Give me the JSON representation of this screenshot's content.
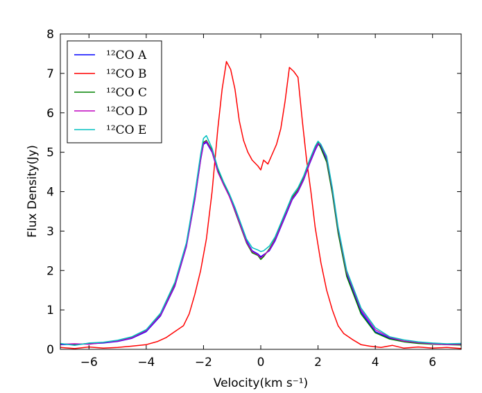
{
  "chart_data": {
    "type": "line",
    "title": "",
    "xlabel": "Velocity(km s⁻¹)",
    "ylabel": "Flux Density(Jy)",
    "xlim": [
      -7,
      7
    ],
    "ylim": [
      0,
      8
    ],
    "xticks": [
      -6,
      -4,
      -2,
      0,
      2,
      4,
      6
    ],
    "xtick_labels": [
      "−6",
      "−4",
      "−2",
      "0",
      "2",
      "4",
      "6"
    ],
    "yticks": [
      0,
      1,
      2,
      3,
      4,
      5,
      6,
      7,
      8
    ],
    "ytick_labels": [
      "0",
      "1",
      "2",
      "3",
      "4",
      "5",
      "6",
      "7",
      "8"
    ],
    "grid": false,
    "legend_position": "top-left",
    "series": [
      {
        "name": "¹²CO A",
        "color": "#0000ff",
        "points": [
          [
            -7,
            0.12
          ],
          [
            -6.5,
            0.13
          ],
          [
            -6,
            0.14
          ],
          [
            -5.5,
            0.16
          ],
          [
            -5,
            0.2
          ],
          [
            -4.5,
            0.28
          ],
          [
            -4,
            0.45
          ],
          [
            -3.5,
            0.85
          ],
          [
            -3,
            1.6
          ],
          [
            -2.6,
            2.6
          ],
          [
            -2.3,
            3.8
          ],
          [
            -2.1,
            4.8
          ],
          [
            -2,
            5.2
          ],
          [
            -1.9,
            5.25
          ],
          [
            -1.7,
            5.0
          ],
          [
            -1.5,
            4.5
          ],
          [
            -1.3,
            4.2
          ],
          [
            -1.1,
            3.9
          ],
          [
            -0.9,
            3.55
          ],
          [
            -0.7,
            3.15
          ],
          [
            -0.5,
            2.75
          ],
          [
            -0.3,
            2.5
          ],
          [
            -0.1,
            2.42
          ],
          [
            0,
            2.35
          ],
          [
            0.1,
            2.4
          ],
          [
            0.3,
            2.5
          ],
          [
            0.5,
            2.75
          ],
          [
            0.7,
            3.1
          ],
          [
            0.9,
            3.45
          ],
          [
            1.1,
            3.8
          ],
          [
            1.3,
            4.0
          ],
          [
            1.5,
            4.3
          ],
          [
            1.7,
            4.7
          ],
          [
            1.9,
            5.05
          ],
          [
            2.0,
            5.2
          ],
          [
            2.1,
            5.15
          ],
          [
            2.3,
            4.8
          ],
          [
            2.5,
            4.0
          ],
          [
            2.7,
            3.0
          ],
          [
            3.0,
            1.9
          ],
          [
            3.5,
            0.95
          ],
          [
            4.0,
            0.45
          ],
          [
            4.5,
            0.28
          ],
          [
            5,
            0.2
          ],
          [
            5.5,
            0.16
          ],
          [
            6,
            0.14
          ],
          [
            6.5,
            0.13
          ],
          [
            7,
            0.12
          ]
        ]
      },
      {
        "name": "¹²CO B",
        "color": "#ff0000",
        "points": [
          [
            -7,
            0.05
          ],
          [
            -6.5,
            0.02
          ],
          [
            -6,
            0.06
          ],
          [
            -5.5,
            0.03
          ],
          [
            -5,
            0.05
          ],
          [
            -4.5,
            0.08
          ],
          [
            -4,
            0.12
          ],
          [
            -3.6,
            0.2
          ],
          [
            -3.3,
            0.3
          ],
          [
            -3.0,
            0.45
          ],
          [
            -2.7,
            0.6
          ],
          [
            -2.5,
            0.9
          ],
          [
            -2.3,
            1.4
          ],
          [
            -2.1,
            2.0
          ],
          [
            -1.9,
            2.8
          ],
          [
            -1.7,
            4.0
          ],
          [
            -1.5,
            5.6
          ],
          [
            -1.35,
            6.6
          ],
          [
            -1.2,
            7.3
          ],
          [
            -1.05,
            7.1
          ],
          [
            -0.9,
            6.6
          ],
          [
            -0.75,
            5.8
          ],
          [
            -0.6,
            5.3
          ],
          [
            -0.45,
            5.0
          ],
          [
            -0.3,
            4.8
          ],
          [
            -0.1,
            4.65
          ],
          [
            0,
            4.55
          ],
          [
            0.1,
            4.8
          ],
          [
            0.25,
            4.7
          ],
          [
            0.4,
            4.95
          ],
          [
            0.55,
            5.2
          ],
          [
            0.7,
            5.6
          ],
          [
            0.85,
            6.3
          ],
          [
            1.0,
            7.15
          ],
          [
            1.15,
            7.05
          ],
          [
            1.3,
            6.9
          ],
          [
            1.45,
            5.8
          ],
          [
            1.6,
            4.8
          ],
          [
            1.75,
            4.0
          ],
          [
            1.9,
            3.1
          ],
          [
            2.1,
            2.2
          ],
          [
            2.3,
            1.5
          ],
          [
            2.5,
            1.0
          ],
          [
            2.7,
            0.6
          ],
          [
            2.9,
            0.4
          ],
          [
            3.2,
            0.25
          ],
          [
            3.5,
            0.12
          ],
          [
            3.8,
            0.08
          ],
          [
            4.2,
            0.05
          ],
          [
            4.6,
            0.1
          ],
          [
            5,
            0.03
          ],
          [
            5.5,
            0.06
          ],
          [
            6,
            0.03
          ],
          [
            6.5,
            0.05
          ],
          [
            7,
            0.02
          ]
        ]
      },
      {
        "name": "¹²CO C",
        "color": "#008000",
        "points": [
          [
            -7,
            0.14
          ],
          [
            -6.5,
            0.12
          ],
          [
            -6,
            0.15
          ],
          [
            -5.5,
            0.17
          ],
          [
            -5,
            0.22
          ],
          [
            -4.5,
            0.3
          ],
          [
            -4,
            0.48
          ],
          [
            -3.5,
            0.88
          ],
          [
            -3,
            1.65
          ],
          [
            -2.6,
            2.65
          ],
          [
            -2.3,
            3.85
          ],
          [
            -2.1,
            4.85
          ],
          [
            -2,
            5.25
          ],
          [
            -1.9,
            5.3
          ],
          [
            -1.7,
            5.05
          ],
          [
            -1.5,
            4.55
          ],
          [
            -1.3,
            4.2
          ],
          [
            -1.1,
            3.9
          ],
          [
            -0.9,
            3.5
          ],
          [
            -0.7,
            3.1
          ],
          [
            -0.5,
            2.7
          ],
          [
            -0.3,
            2.45
          ],
          [
            -0.1,
            2.38
          ],
          [
            0,
            2.28
          ],
          [
            0.1,
            2.35
          ],
          [
            0.3,
            2.55
          ],
          [
            0.5,
            2.8
          ],
          [
            0.7,
            3.15
          ],
          [
            0.9,
            3.5
          ],
          [
            1.1,
            3.85
          ],
          [
            1.3,
            4.05
          ],
          [
            1.5,
            4.35
          ],
          [
            1.7,
            4.75
          ],
          [
            1.9,
            5.1
          ],
          [
            2.0,
            5.25
          ],
          [
            2.1,
            5.1
          ],
          [
            2.3,
            4.75
          ],
          [
            2.5,
            3.95
          ],
          [
            2.7,
            2.95
          ],
          [
            3.0,
            1.85
          ],
          [
            3.5,
            0.9
          ],
          [
            4.0,
            0.42
          ],
          [
            4.5,
            0.26
          ],
          [
            5,
            0.19
          ],
          [
            5.5,
            0.15
          ],
          [
            6,
            0.13
          ],
          [
            6.5,
            0.12
          ],
          [
            7,
            0.11
          ]
        ]
      },
      {
        "name": "¹²CO D",
        "color": "#bf00bf",
        "points": [
          [
            -7,
            0.13
          ],
          [
            -6.5,
            0.14
          ],
          [
            -6,
            0.13
          ],
          [
            -5.5,
            0.17
          ],
          [
            -5,
            0.21
          ],
          [
            -4.5,
            0.29
          ],
          [
            -4,
            0.47
          ],
          [
            -3.5,
            0.87
          ],
          [
            -3,
            1.62
          ],
          [
            -2.6,
            2.62
          ],
          [
            -2.3,
            3.82
          ],
          [
            -2.1,
            4.82
          ],
          [
            -2,
            5.22
          ],
          [
            -1.9,
            5.28
          ],
          [
            -1.7,
            5.02
          ],
          [
            -1.5,
            4.5
          ],
          [
            -1.3,
            4.18
          ],
          [
            -1.1,
            3.88
          ],
          [
            -0.9,
            3.52
          ],
          [
            -0.7,
            3.12
          ],
          [
            -0.5,
            2.72
          ],
          [
            -0.3,
            2.48
          ],
          [
            -0.1,
            2.4
          ],
          [
            0,
            2.32
          ],
          [
            0.1,
            2.38
          ],
          [
            0.3,
            2.52
          ],
          [
            0.5,
            2.78
          ],
          [
            0.7,
            3.12
          ],
          [
            0.9,
            3.48
          ],
          [
            1.1,
            3.82
          ],
          [
            1.3,
            4.02
          ],
          [
            1.5,
            4.32
          ],
          [
            1.7,
            4.72
          ],
          [
            1.9,
            5.08
          ],
          [
            2.0,
            5.22
          ],
          [
            2.1,
            5.18
          ],
          [
            2.3,
            4.85
          ],
          [
            2.5,
            4.05
          ],
          [
            2.7,
            3.05
          ],
          [
            3.0,
            1.95
          ],
          [
            3.5,
            1.0
          ],
          [
            4.0,
            0.5
          ],
          [
            4.5,
            0.3
          ],
          [
            5,
            0.21
          ],
          [
            5.5,
            0.17
          ],
          [
            6,
            0.14
          ],
          [
            6.5,
            0.12
          ],
          [
            7,
            0.13
          ]
        ]
      },
      {
        "name": "¹²CO E",
        "color": "#00bfbf",
        "points": [
          [
            -7,
            0.15
          ],
          [
            -6.5,
            0.1
          ],
          [
            -6,
            0.16
          ],
          [
            -5.5,
            0.18
          ],
          [
            -5,
            0.23
          ],
          [
            -4.5,
            0.32
          ],
          [
            -4,
            0.5
          ],
          [
            -3.5,
            0.92
          ],
          [
            -3,
            1.7
          ],
          [
            -2.6,
            2.7
          ],
          [
            -2.3,
            3.95
          ],
          [
            -2.1,
            4.95
          ],
          [
            -2,
            5.35
          ],
          [
            -1.9,
            5.42
          ],
          [
            -1.7,
            5.1
          ],
          [
            -1.5,
            4.6
          ],
          [
            -1.3,
            4.25
          ],
          [
            -1.1,
            3.95
          ],
          [
            -0.9,
            3.6
          ],
          [
            -0.7,
            3.2
          ],
          [
            -0.5,
            2.8
          ],
          [
            -0.3,
            2.58
          ],
          [
            -0.1,
            2.52
          ],
          [
            0,
            2.48
          ],
          [
            0.1,
            2.5
          ],
          [
            0.3,
            2.62
          ],
          [
            0.5,
            2.85
          ],
          [
            0.7,
            3.2
          ],
          [
            0.9,
            3.55
          ],
          [
            1.1,
            3.9
          ],
          [
            1.3,
            4.1
          ],
          [
            1.5,
            4.4
          ],
          [
            1.7,
            4.8
          ],
          [
            1.9,
            5.15
          ],
          [
            2.0,
            5.28
          ],
          [
            2.1,
            5.2
          ],
          [
            2.3,
            4.9
          ],
          [
            2.5,
            4.1
          ],
          [
            2.7,
            3.1
          ],
          [
            3.0,
            2.0
          ],
          [
            3.5,
            1.05
          ],
          [
            4.0,
            0.55
          ],
          [
            4.5,
            0.32
          ],
          [
            5,
            0.24
          ],
          [
            5.5,
            0.19
          ],
          [
            6,
            0.16
          ],
          [
            6.5,
            0.14
          ],
          [
            7,
            0.15
          ]
        ]
      }
    ]
  }
}
